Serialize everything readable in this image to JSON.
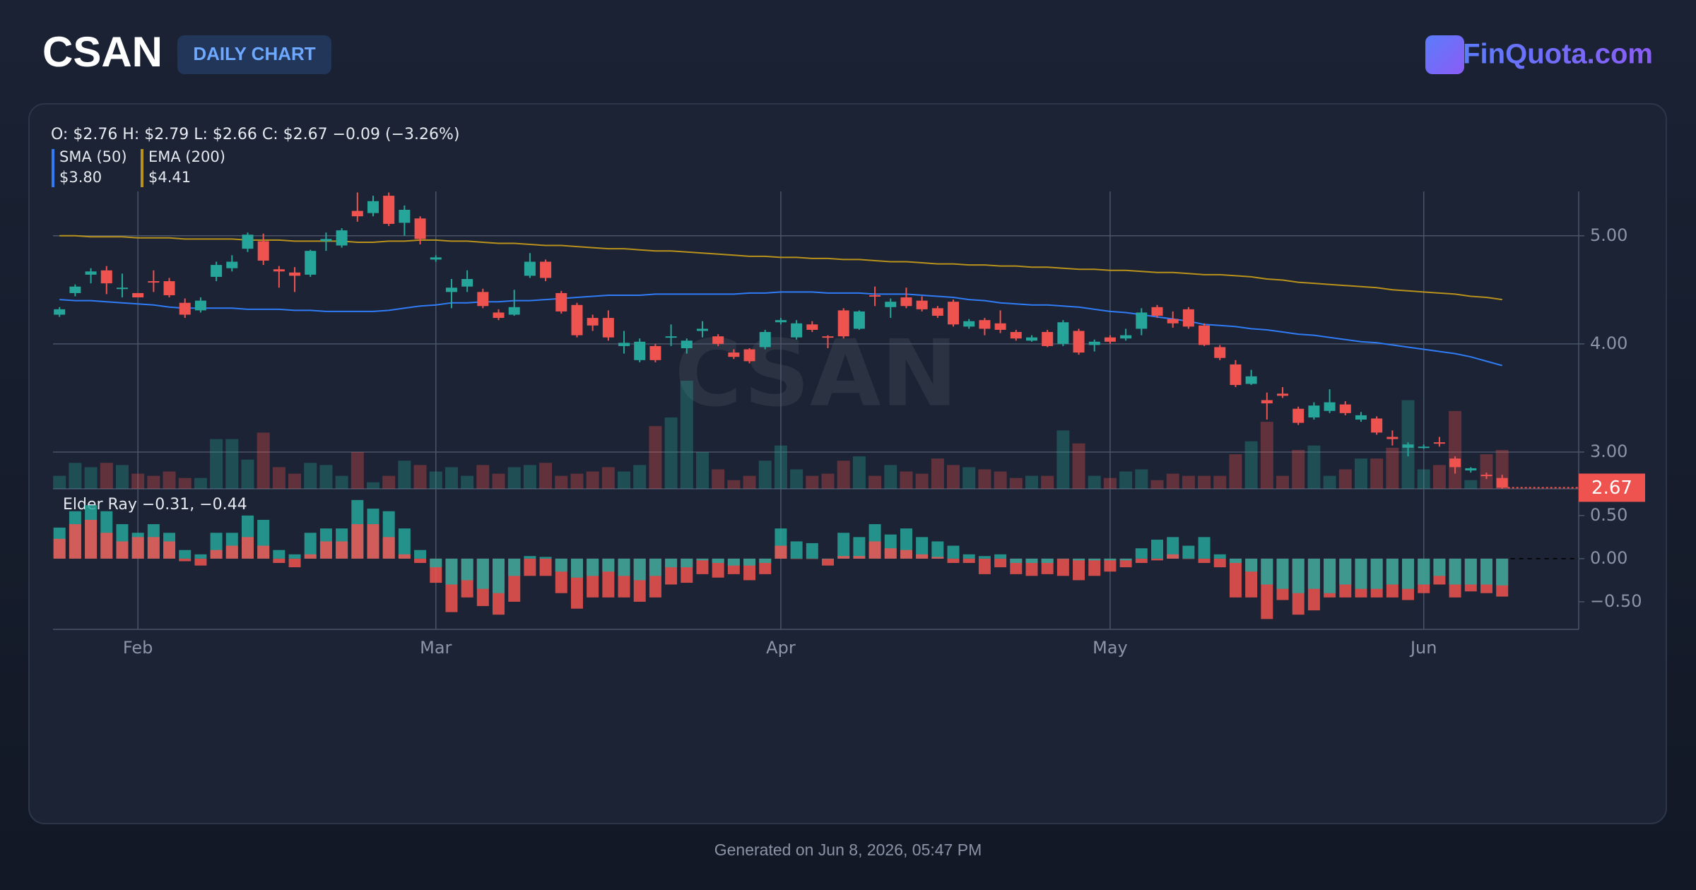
{
  "header": {
    "title": "CSAN",
    "badge": "DAILY CHART",
    "brand": "FinQuota.com"
  },
  "footer": "Generated on Jun 8, 2026, 05:47 PM",
  "chart_data": {
    "type": "candlestick",
    "watermark": "CSAN",
    "ohlc_label": "O: $2.76 H: $2.79 L: $2.66 C: $2.67 −0.09 (−3.26%)",
    "grid": true,
    "up_color": "#26a69a",
    "down_color": "#ef5350",
    "categories": [
      null,
      null,
      null,
      null,
      null,
      "Feb",
      null,
      null,
      null,
      null,
      null,
      null,
      null,
      null,
      null,
      null,
      null,
      null,
      null,
      null,
      null,
      null,
      null,
      null,
      "Mar",
      null,
      null,
      null,
      null,
      null,
      null,
      null,
      null,
      null,
      null,
      null,
      null,
      null,
      null,
      null,
      null,
      null,
      null,
      null,
      null,
      null,
      "Apr",
      null,
      null,
      null,
      null,
      null,
      null,
      null,
      null,
      null,
      null,
      null,
      null,
      null,
      null,
      null,
      null,
      null,
      null,
      null,
      null,
      "May",
      null,
      null,
      null,
      null,
      null,
      null,
      null,
      null,
      null,
      null,
      null,
      null,
      null,
      null,
      null,
      null,
      null,
      null,
      null,
      "Jun",
      null,
      null,
      null,
      null,
      null
    ],
    "open": [
      4.27,
      4.47,
      4.64,
      4.68,
      4.51,
      4.47,
      4.58,
      4.58,
      4.38,
      4.31,
      4.62,
      4.7,
      4.88,
      4.95,
      4.69,
      4.66,
      4.64,
      4.95,
      4.91,
      5.23,
      5.21,
      5.37,
      5.12,
      5.16,
      4.78,
      4.48,
      4.53,
      4.48,
      4.29,
      4.27,
      4.63,
      4.76,
      4.47,
      4.36,
      4.24,
      4.24,
      3.98,
      3.85,
      3.98,
      4.06,
      3.96,
      4.12,
      4.07,
      3.92,
      3.95,
      3.97,
      4.2,
      4.06,
      4.18,
      4.07,
      4.31,
      4.14,
      4.45,
      4.34,
      4.43,
      4.4,
      4.33,
      4.39,
      4.16,
      4.22,
      4.19,
      4.11,
      4.03,
      4.11,
      4.0,
      4.12,
      3.99,
      4.06,
      4.05,
      4.14,
      4.34,
      4.23,
      4.32,
      4.17,
      3.97,
      3.81,
      3.63,
      3.48,
      3.54,
      3.4,
      3.32,
      3.38,
      3.44,
      3.3,
      3.31,
      3.14,
      3.04,
      3.04,
      3.09,
      2.94,
      2.83,
      2.79,
      2.76
    ],
    "high": [
      4.34,
      4.55,
      4.7,
      4.72,
      4.65,
      4.47,
      4.68,
      4.61,
      4.42,
      4.43,
      4.76,
      4.82,
      5.03,
      5.02,
      4.72,
      4.71,
      4.87,
      5.03,
      5.07,
      5.4,
      5.37,
      5.4,
      5.28,
      5.18,
      4.82,
      4.6,
      4.68,
      4.51,
      4.32,
      4.5,
      4.84,
      4.78,
      4.49,
      4.38,
      4.27,
      4.31,
      4.12,
      4.05,
      4.0,
      4.18,
      4.05,
      4.21,
      4.09,
      3.95,
      3.96,
      4.13,
      4.24,
      4.22,
      4.21,
      4.08,
      4.33,
      4.31,
      4.53,
      4.42,
      4.52,
      4.44,
      4.35,
      4.41,
      4.23,
      4.24,
      4.31,
      4.13,
      4.08,
      4.13,
      4.22,
      4.14,
      4.04,
      4.08,
      4.14,
      4.33,
      4.36,
      4.3,
      4.34,
      4.19,
      3.99,
      3.85,
      3.76,
      3.55,
      3.6,
      3.42,
      3.46,
      3.58,
      3.47,
      3.37,
      3.33,
      3.2,
      3.09,
      3.07,
      3.14,
      2.96,
      2.86,
      2.81,
      2.79
    ],
    "low": [
      4.25,
      4.44,
      4.56,
      4.46,
      4.43,
      4.43,
      4.48,
      4.43,
      4.24,
      4.29,
      4.58,
      4.67,
      4.85,
      4.73,
      4.52,
      4.48,
      4.62,
      4.86,
      4.89,
      5.13,
      5.18,
      5.09,
      5.0,
      4.92,
      4.76,
      4.33,
      4.48,
      4.33,
      4.22,
      4.26,
      4.61,
      4.58,
      4.28,
      4.06,
      4.12,
      4.03,
      3.91,
      3.83,
      3.83,
      3.98,
      3.91,
      4.06,
      3.98,
      3.86,
      3.82,
      3.95,
      4.18,
      4.04,
      4.11,
      3.96,
      4.05,
      4.13,
      4.35,
      4.24,
      4.33,
      4.3,
      4.24,
      4.16,
      4.14,
      4.08,
      4.1,
      4.03,
      4.02,
      3.97,
      3.98,
      3.9,
      3.93,
      4.0,
      4.03,
      4.08,
      4.24,
      4.15,
      4.14,
      3.98,
      3.85,
      3.6,
      3.62,
      3.3,
      3.5,
      3.25,
      3.3,
      3.36,
      3.34,
      3.28,
      3.16,
      3.06,
      2.96,
      3.03,
      3.05,
      2.8,
      2.81,
      2.75,
      2.66
    ],
    "close": [
      4.32,
      4.53,
      4.67,
      4.56,
      4.52,
      4.43,
      4.57,
      4.45,
      4.27,
      4.4,
      4.73,
      4.76,
      5.01,
      4.77,
      4.67,
      4.63,
      4.86,
      4.97,
      5.05,
      5.18,
      5.32,
      5.11,
      5.24,
      4.97,
      4.8,
      4.52,
      4.6,
      4.35,
      4.24,
      4.34,
      4.76,
      4.61,
      4.3,
      4.08,
      4.17,
      4.06,
      4.01,
      4.02,
      3.85,
      4.07,
      4.03,
      4.14,
      4.0,
      3.88,
      3.84,
      4.11,
      4.22,
      4.19,
      4.13,
      4.06,
      4.07,
      4.3,
      4.44,
      4.39,
      4.35,
      4.32,
      4.26,
      4.18,
      4.21,
      4.14,
      4.13,
      4.05,
      4.06,
      3.98,
      4.2,
      3.92,
      4.02,
      4.02,
      4.08,
      4.29,
      4.26,
      4.19,
      4.16,
      3.99,
      3.87,
      3.62,
      3.7,
      3.45,
      3.52,
      3.27,
      3.43,
      3.46,
      3.36,
      3.34,
      3.18,
      3.12,
      3.07,
      3.05,
      3.08,
      2.86,
      2.85,
      2.78,
      2.67
    ],
    "volume": [
      12,
      24,
      20,
      24,
      22,
      14,
      12,
      16,
      10,
      10,
      46,
      46,
      27,
      52,
      20,
      14,
      24,
      22,
      12,
      34,
      6,
      12,
      26,
      22,
      16,
      20,
      12,
      22,
      14,
      20,
      22,
      24,
      12,
      14,
      16,
      20,
      16,
      22,
      58,
      66,
      100,
      34,
      18,
      8,
      12,
      26,
      40,
      18,
      12,
      14,
      26,
      30,
      12,
      22,
      16,
      14,
      28,
      22,
      20,
      18,
      16,
      10,
      12,
      12,
      54,
      42,
      12,
      10,
      16,
      18,
      8,
      14,
      12,
      12,
      12,
      32,
      44,
      62,
      12,
      36,
      40,
      12,
      18,
      28,
      28,
      38,
      82,
      18,
      22,
      72,
      8,
      32,
      36
    ],
    "ylim": [
      2.66,
      5.41
    ],
    "yticks": [
      {
        "value": 3,
        "label": "3.00"
      },
      {
        "value": 4,
        "label": "4.00"
      },
      {
        "value": 5,
        "label": "5.00"
      }
    ],
    "overlays": [
      {
        "name": "SMA (50)",
        "value_label": "$3.80",
        "color": "#2f7cf6",
        "values": [
          4.41,
          4.4,
          4.4,
          4.39,
          4.38,
          4.37,
          4.36,
          4.34,
          4.33,
          4.33,
          4.33,
          4.33,
          4.32,
          4.32,
          4.32,
          4.31,
          4.31,
          4.3,
          4.3,
          4.3,
          4.3,
          4.31,
          4.33,
          4.35,
          4.36,
          4.38,
          4.38,
          4.39,
          4.39,
          4.4,
          4.4,
          4.41,
          4.42,
          4.43,
          4.44,
          4.45,
          4.45,
          4.45,
          4.46,
          4.46,
          4.46,
          4.46,
          4.46,
          4.46,
          4.47,
          4.47,
          4.48,
          4.48,
          4.48,
          4.47,
          4.47,
          4.47,
          4.46,
          4.46,
          4.46,
          4.45,
          4.44,
          4.43,
          4.41,
          4.4,
          4.38,
          4.37,
          4.36,
          4.36,
          4.35,
          4.34,
          4.32,
          4.3,
          4.29,
          4.27,
          4.25,
          4.23,
          4.21,
          4.18,
          4.17,
          4.16,
          4.14,
          4.13,
          4.11,
          4.09,
          4.08,
          4.06,
          4.04,
          4.02,
          4.01,
          3.99,
          3.97,
          3.95,
          3.93,
          3.91,
          3.88,
          3.84,
          3.8
        ]
      },
      {
        "name": "EMA (200)",
        "value_label": "$4.41",
        "color": "#b8921a",
        "values": [
          5.0,
          5.0,
          4.99,
          4.99,
          4.99,
          4.98,
          4.98,
          4.98,
          4.97,
          4.97,
          4.97,
          4.97,
          4.96,
          4.96,
          4.96,
          4.95,
          4.95,
          4.95,
          4.95,
          4.94,
          4.94,
          4.95,
          4.95,
          4.96,
          4.96,
          4.95,
          4.95,
          4.94,
          4.93,
          4.93,
          4.92,
          4.91,
          4.91,
          4.9,
          4.89,
          4.88,
          4.88,
          4.87,
          4.86,
          4.86,
          4.85,
          4.84,
          4.83,
          4.82,
          4.81,
          4.81,
          4.8,
          4.8,
          4.79,
          4.79,
          4.78,
          4.78,
          4.77,
          4.76,
          4.76,
          4.75,
          4.74,
          4.74,
          4.73,
          4.73,
          4.72,
          4.72,
          4.71,
          4.71,
          4.7,
          4.69,
          4.69,
          4.68,
          4.68,
          4.67,
          4.66,
          4.66,
          4.65,
          4.64,
          4.64,
          4.63,
          4.62,
          4.6,
          4.59,
          4.57,
          4.56,
          4.55,
          4.54,
          4.53,
          4.52,
          4.5,
          4.49,
          4.48,
          4.47,
          4.46,
          4.44,
          4.43,
          4.41
        ]
      }
    ],
    "elder_ray": {
      "label": "Elder Ray −0.31, −0.44",
      "ylim": [
        -0.82,
        0.81
      ],
      "yticks": [
        {
          "value": -0.5,
          "label": "−0.50"
        },
        {
          "value": 0,
          "label": "0.00"
        },
        {
          "value": 0.5,
          "label": "0.50"
        }
      ],
      "bull": [
        0.36,
        0.55,
        0.62,
        0.55,
        0.4,
        0.3,
        0.4,
        0.3,
        0.1,
        0.05,
        0.3,
        0.3,
        0.5,
        0.45,
        0.1,
        0.05,
        0.3,
        0.35,
        0.35,
        0.68,
        0.58,
        0.55,
        0.35,
        0.1,
        -0.1,
        -0.3,
        -0.25,
        -0.35,
        -0.4,
        -0.2,
        0.03,
        0.02,
        -0.15,
        -0.22,
        -0.2,
        -0.15,
        -0.2,
        -0.25,
        -0.2,
        -0.1,
        -0.1,
        -0.02,
        -0.05,
        -0.08,
        -0.08,
        -0.05,
        0.35,
        0.2,
        0.18,
        0.0,
        0.3,
        0.25,
        0.4,
        0.28,
        0.35,
        0.25,
        0.2,
        0.15,
        0.05,
        0.03,
        0.05,
        -0.05,
        -0.05,
        -0.05,
        0.0,
        -0.02,
        -0.02,
        -0.02,
        -0.02,
        0.12,
        0.22,
        0.25,
        0.15,
        0.25,
        0.05,
        -0.05,
        -0.15,
        -0.3,
        -0.35,
        -0.4,
        -0.35,
        -0.4,
        -0.3,
        -0.35,
        -0.35,
        -0.3,
        -0.35,
        -0.3,
        -0.2,
        -0.3,
        -0.3,
        -0.3,
        -0.31
      ],
      "bear": [
        0.23,
        0.4,
        0.45,
        0.3,
        0.2,
        0.25,
        0.25,
        0.2,
        -0.03,
        -0.08,
        0.1,
        0.15,
        0.25,
        0.15,
        -0.05,
        -0.1,
        0.05,
        0.2,
        0.2,
        0.4,
        0.4,
        0.25,
        0.05,
        -0.05,
        -0.28,
        -0.62,
        -0.45,
        -0.55,
        -0.65,
        -0.5,
        -0.2,
        -0.2,
        -0.4,
        -0.58,
        -0.45,
        -0.45,
        -0.45,
        -0.5,
        -0.45,
        -0.3,
        -0.28,
        -0.18,
        -0.22,
        -0.18,
        -0.25,
        -0.18,
        0.15,
        0.0,
        0.0,
        -0.08,
        0.03,
        0.03,
        0.2,
        0.12,
        0.1,
        0.05,
        0.02,
        -0.05,
        -0.05,
        -0.18,
        -0.1,
        -0.18,
        -0.2,
        -0.18,
        -0.2,
        -0.25,
        -0.2,
        -0.15,
        -0.1,
        -0.05,
        -0.02,
        0.05,
        0.0,
        -0.05,
        -0.1,
        -0.45,
        -0.45,
        -0.7,
        -0.48,
        -0.65,
        -0.6,
        -0.45,
        -0.45,
        -0.45,
        -0.45,
        -0.45,
        -0.48,
        -0.4,
        -0.3,
        -0.45,
        -0.38,
        -0.4,
        -0.44
      ]
    }
  }
}
